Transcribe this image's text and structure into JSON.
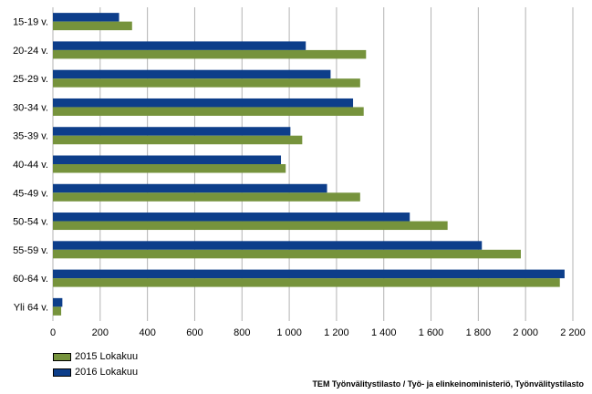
{
  "chart_data": {
    "type": "bar",
    "orientation": "horizontal",
    "categories": [
      "15-19 v.",
      "20-24 v.",
      "25-29 v.",
      "30-34 v.",
      "35-39 v.",
      "40-44 v.",
      "45-49 v.",
      "50-54 v.",
      "55-59 v.",
      "60-64 v.",
      "Yli 64 v."
    ],
    "series": [
      {
        "name": "2015 Lokakuu",
        "color": "#76933c",
        "values": [
          335,
          1325,
          1300,
          1315,
          1055,
          985,
          1300,
          1670,
          1980,
          2145,
          35
        ]
      },
      {
        "name": "2016 Lokakuu",
        "color": "#0d3e8a",
        "values": [
          280,
          1070,
          1175,
          1270,
          1005,
          965,
          1160,
          1510,
          1815,
          2165,
          40
        ]
      }
    ],
    "x_ticks": [
      "0",
      "200",
      "400",
      "600",
      "800",
      "1 000",
      "1 200",
      "1 400",
      "1 600",
      "1 800",
      "2 000",
      "2 200"
    ],
    "xlim": [
      0,
      2200
    ],
    "grid": "vertical",
    "legend_position": "bottom-left"
  },
  "source_text": "TEM Työnvälitystilasto / Työ- ja elinkeinoministeriö, Työnvälitystilasto"
}
